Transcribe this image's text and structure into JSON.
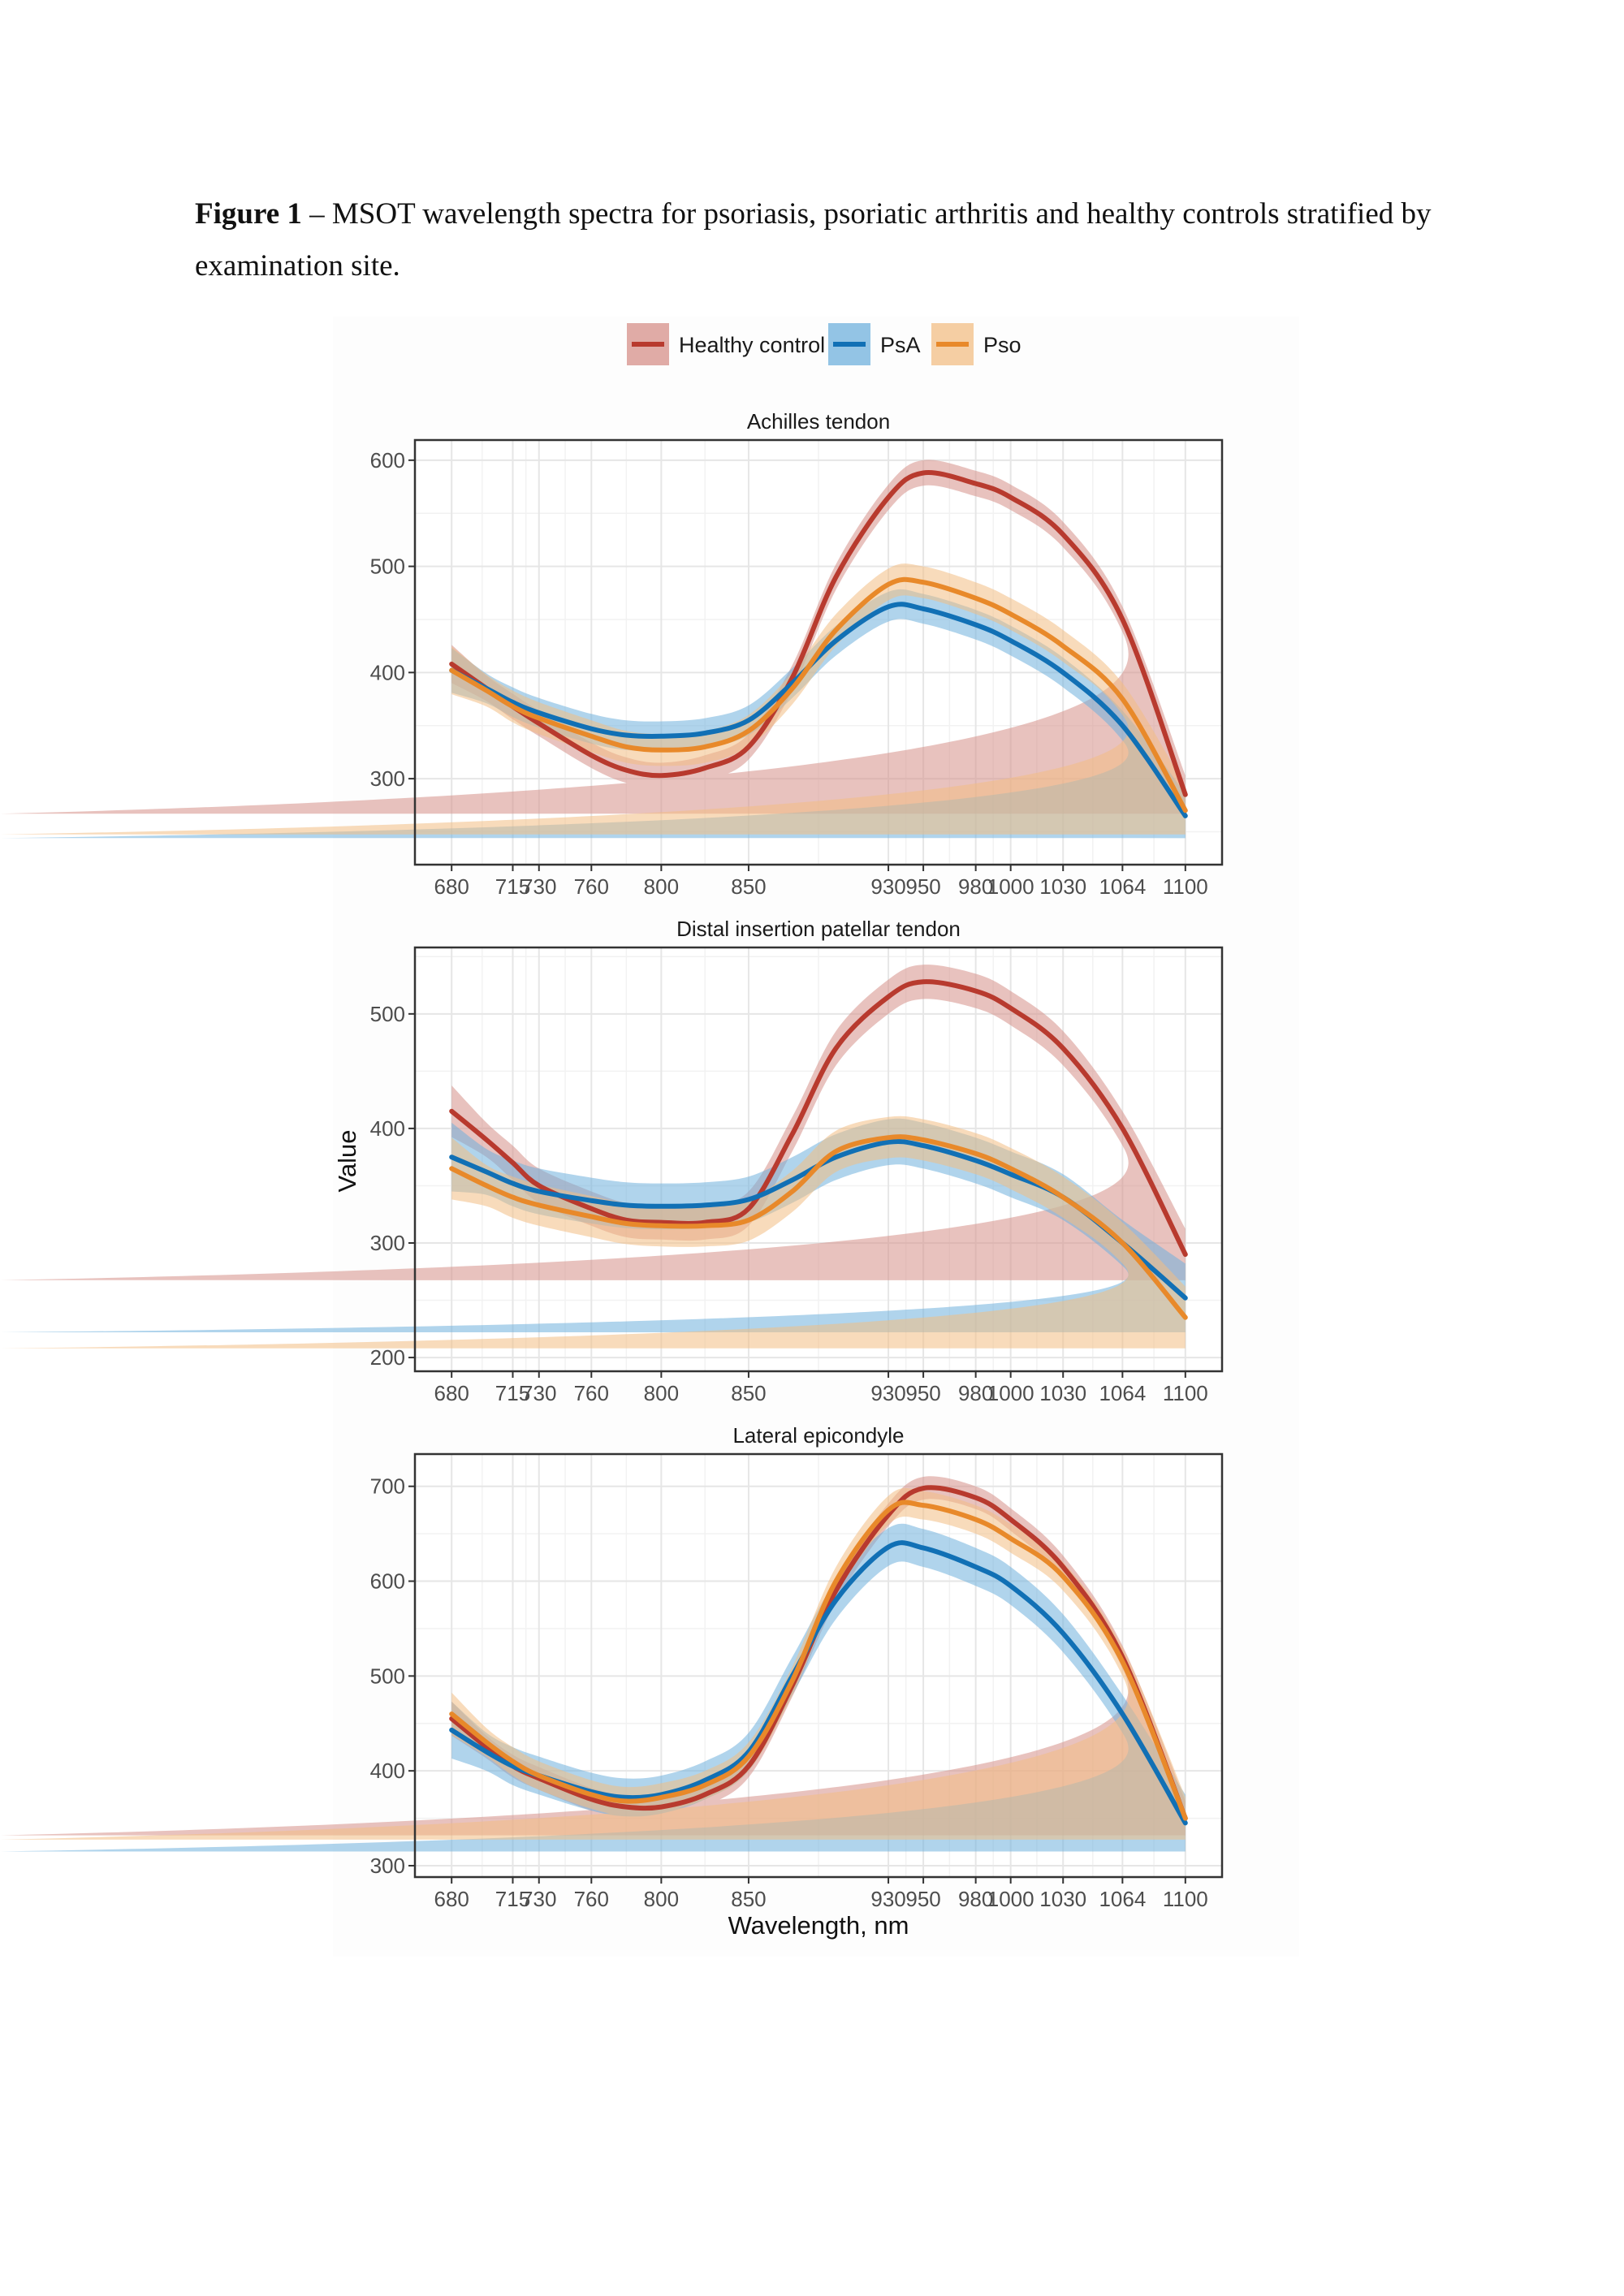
{
  "caption": {
    "label": "Figure 1",
    "text": " – MSOT wavelength spectra for psoriasis, psoriatic arthritis and healthy controls stratified by examination site."
  },
  "chart_data": {
    "type": "line",
    "ylabel": "Value",
    "xlabel": "Wavelength, nm",
    "legend_position": "top",
    "x_ticks": [
      680,
      715,
      730,
      760,
      800,
      850,
      930,
      950,
      980,
      1000,
      1030,
      1064,
      1100
    ],
    "xlim": [
      659,
      1121
    ],
    "grid": true,
    "series_meta": [
      {
        "name": "Healthy control",
        "color": "#B83A2E",
        "band": "#D68F88"
      },
      {
        "name": "PsA",
        "color": "#1170B5",
        "band": "#6FB0DC"
      },
      {
        "name": "Pso",
        "color": "#E8892A",
        "band": "#F2BE84"
      }
    ],
    "x": [
      680,
      700,
      715,
      730,
      760,
      780,
      800,
      825,
      850,
      875,
      900,
      930,
      950,
      980,
      1000,
      1030,
      1064,
      1100
    ],
    "panels": [
      {
        "title": "Achilles tendon",
        "ylim": [
          219,
          619
        ],
        "y_ticks": [
          300,
          400,
          500,
          600
        ],
        "series": [
          {
            "name": "Healthy control",
            "ci": 12,
            "values": [
              408,
              385,
              368,
              352,
              322,
              308,
              303,
              310,
              330,
              395,
              490,
              565,
              588,
              578,
              565,
              530,
              450,
              285
            ]
          },
          {
            "name": "PsA",
            "ci": 14,
            "values": [
              402,
              385,
              372,
              362,
              347,
              341,
              340,
              343,
              355,
              390,
              430,
              462,
              460,
              445,
              430,
              400,
              350,
              265
            ]
          },
          {
            "name": "Pso",
            "ci": 15,
            "values": [
              402,
              383,
              368,
              357,
              340,
              330,
              327,
              330,
              345,
              385,
              440,
              483,
              485,
              470,
              455,
              425,
              375,
              270
            ]
          }
        ]
      },
      {
        "title": "Distal insertion patellar tendon",
        "ylim": [
          188,
          558
        ],
        "y_ticks": [
          200,
          300,
          400,
          500
        ],
        "series": [
          {
            "name": "Healthy control",
            "ci": 15,
            "values": [
              415,
              390,
              370,
              350,
              330,
              320,
              318,
              318,
              330,
              395,
              470,
              515,
              528,
              520,
              505,
              470,
              400,
              290
            ]
          },
          {
            "name": "PsA",
            "ci": 20,
            "values": [
              375,
              362,
              352,
              345,
              337,
              333,
              332,
              333,
              338,
              355,
              375,
              388,
              385,
              372,
              360,
              340,
              300,
              252
            ]
          },
          {
            "name": "Pso",
            "ci": 18,
            "values": [
              365,
              350,
              340,
              333,
              323,
              317,
              315,
              315,
              320,
              345,
              380,
              392,
              390,
              378,
              365,
              340,
              300,
              235
            ]
          }
        ]
      },
      {
        "title": "Lateral epicondyle",
        "ylim": [
          288,
          734
        ],
        "y_ticks": [
          300,
          400,
          500,
          600,
          700
        ],
        "series": [
          {
            "name": "Healthy control",
            "ci": 12,
            "values": [
              455,
              425,
              405,
              392,
              370,
              362,
              362,
              375,
              405,
              490,
              590,
              670,
              698,
              688,
              665,
              615,
              520,
              350
            ]
          },
          {
            "name": "PsA",
            "ci": 20,
            "values": [
              443,
              420,
              405,
              395,
              378,
              372,
              375,
              390,
              420,
              500,
              580,
              636,
              635,
              615,
              595,
              545,
              460,
              345
            ]
          },
          {
            "name": "Pso",
            "ci": 15,
            "values": [
              460,
              430,
              410,
              395,
              375,
              368,
              372,
              385,
              415,
              495,
              600,
              675,
              680,
              665,
              645,
              605,
              515,
              350
            ]
          }
        ]
      }
    ]
  }
}
